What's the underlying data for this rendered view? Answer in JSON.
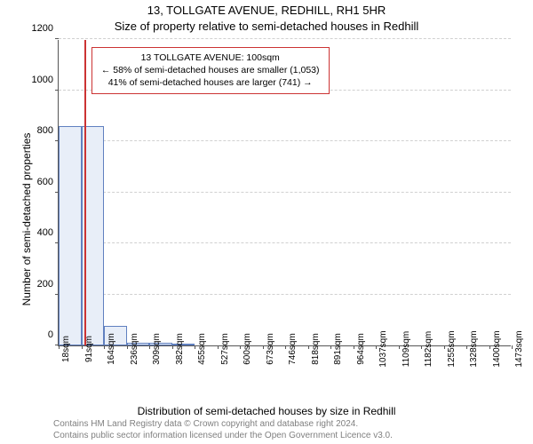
{
  "title_line1": "13, TOLLGATE AVENUE, REDHILL, RH1 5HR",
  "title_line2": "Size of property relative to semi-detached houses in Redhill",
  "ylabel": "Number of semi-detached properties",
  "xlabel": "Distribution of semi-detached houses by size in Redhill",
  "footer_line1": "Contains HM Land Registry data © Crown copyright and database right 2024.",
  "footer_line2": "Contains public sector information licensed under the Open Government Licence v3.0.",
  "chart": {
    "type": "histogram",
    "ylim": [
      0,
      1200
    ],
    "ytick_step": 200,
    "yticks": [
      0,
      200,
      400,
      600,
      800,
      1000,
      1200
    ],
    "xtick_start": 18,
    "xtick_step": 72.75,
    "xtick_count": 21,
    "xtick_unit": "sqm",
    "bar_fill": "#e8eef8",
    "bar_border": "#6080c0",
    "grid_color": "#d0d0d0",
    "background_color": "#ffffff",
    "marker_color": "#cc3333",
    "marker_at_bin": 1,
    "bars": [
      {
        "bin": 0,
        "value": 860
      },
      {
        "bin": 1,
        "value": 860
      },
      {
        "bin": 2,
        "value": 75
      },
      {
        "bin": 3,
        "value": 12
      },
      {
        "bin": 4,
        "value": 10
      },
      {
        "bin": 5,
        "value": 5
      },
      {
        "bin": 6,
        "value": 0
      },
      {
        "bin": 7,
        "value": 0
      },
      {
        "bin": 8,
        "value": 0
      },
      {
        "bin": 9,
        "value": 0
      },
      {
        "bin": 10,
        "value": 0
      },
      {
        "bin": 11,
        "value": 0
      },
      {
        "bin": 12,
        "value": 0
      },
      {
        "bin": 13,
        "value": 0
      },
      {
        "bin": 14,
        "value": 0
      },
      {
        "bin": 15,
        "value": 0
      },
      {
        "bin": 16,
        "value": 0
      },
      {
        "bin": 17,
        "value": 0
      },
      {
        "bin": 18,
        "value": 0
      },
      {
        "bin": 19,
        "value": 0
      }
    ],
    "info_box": {
      "line1": "13 TOLLGATE AVENUE: 100sqm",
      "line2": "← 58% of semi-detached houses are smaller (1,053)",
      "line3": "41% of semi-detached houses are larger (741) →",
      "border_color": "#cc3333"
    }
  }
}
